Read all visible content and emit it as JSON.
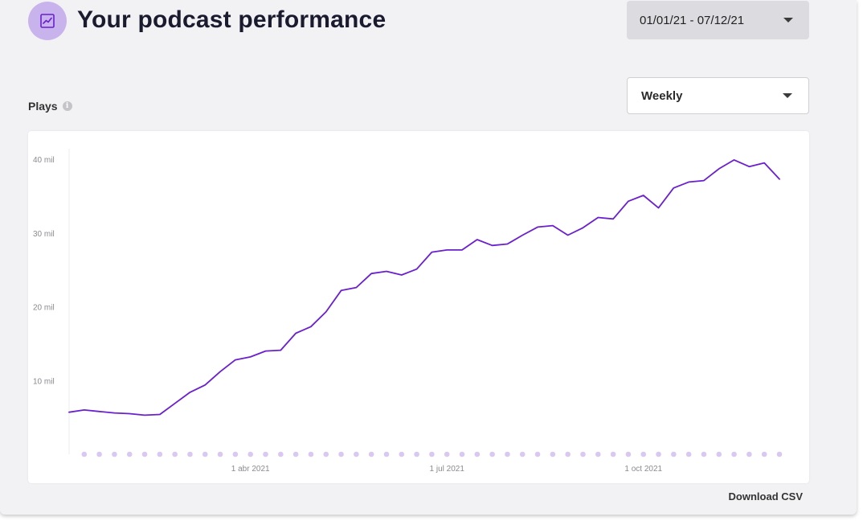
{
  "header": {
    "title": "Your podcast performance",
    "icon": "trending-chart-icon",
    "date_range": "01/01/21 - 07/12/21"
  },
  "controls": {
    "frequency": "Weekly"
  },
  "metric": {
    "label": "Plays",
    "info_icon": "info-icon"
  },
  "footer": {
    "download_label": "Download CSV"
  },
  "colors": {
    "accent": "#6a1fd0",
    "icon_bg": "#c9b3ec",
    "dots": "#d9c8f2"
  },
  "chart_data": {
    "type": "line",
    "title": "",
    "xlabel": "",
    "ylabel": "",
    "ylim": [
      0,
      40000
    ],
    "y_ticks": [
      10000,
      20000,
      30000,
      40000
    ],
    "y_tick_labels": [
      "10 mil",
      "20 mil",
      "30 mil",
      "40 mil"
    ],
    "x_ticks": [
      {
        "label": "1 abr 2021",
        "index": 12
      },
      {
        "label": "1 jul 2021",
        "index": 25
      },
      {
        "label": "1 oct 2021",
        "index": 38
      }
    ],
    "grid": false,
    "legend": "none",
    "series": [
      {
        "values": [
          5700,
          6000,
          5800,
          5600,
          5500,
          5300,
          5400,
          6900,
          8400,
          9400,
          11200,
          12800,
          13200,
          14000,
          14100,
          16400,
          17300,
          19300,
          22200,
          22600,
          24500,
          24800,
          24300,
          25100,
          27400,
          27700,
          27700,
          29100,
          28300,
          28500,
          29700,
          30800,
          31000,
          29700,
          30700,
          32100,
          31900,
          34300,
          35100,
          33400,
          36100,
          36900,
          37100,
          38700,
          39900,
          39000,
          39500,
          37300
        ]
      }
    ]
  }
}
